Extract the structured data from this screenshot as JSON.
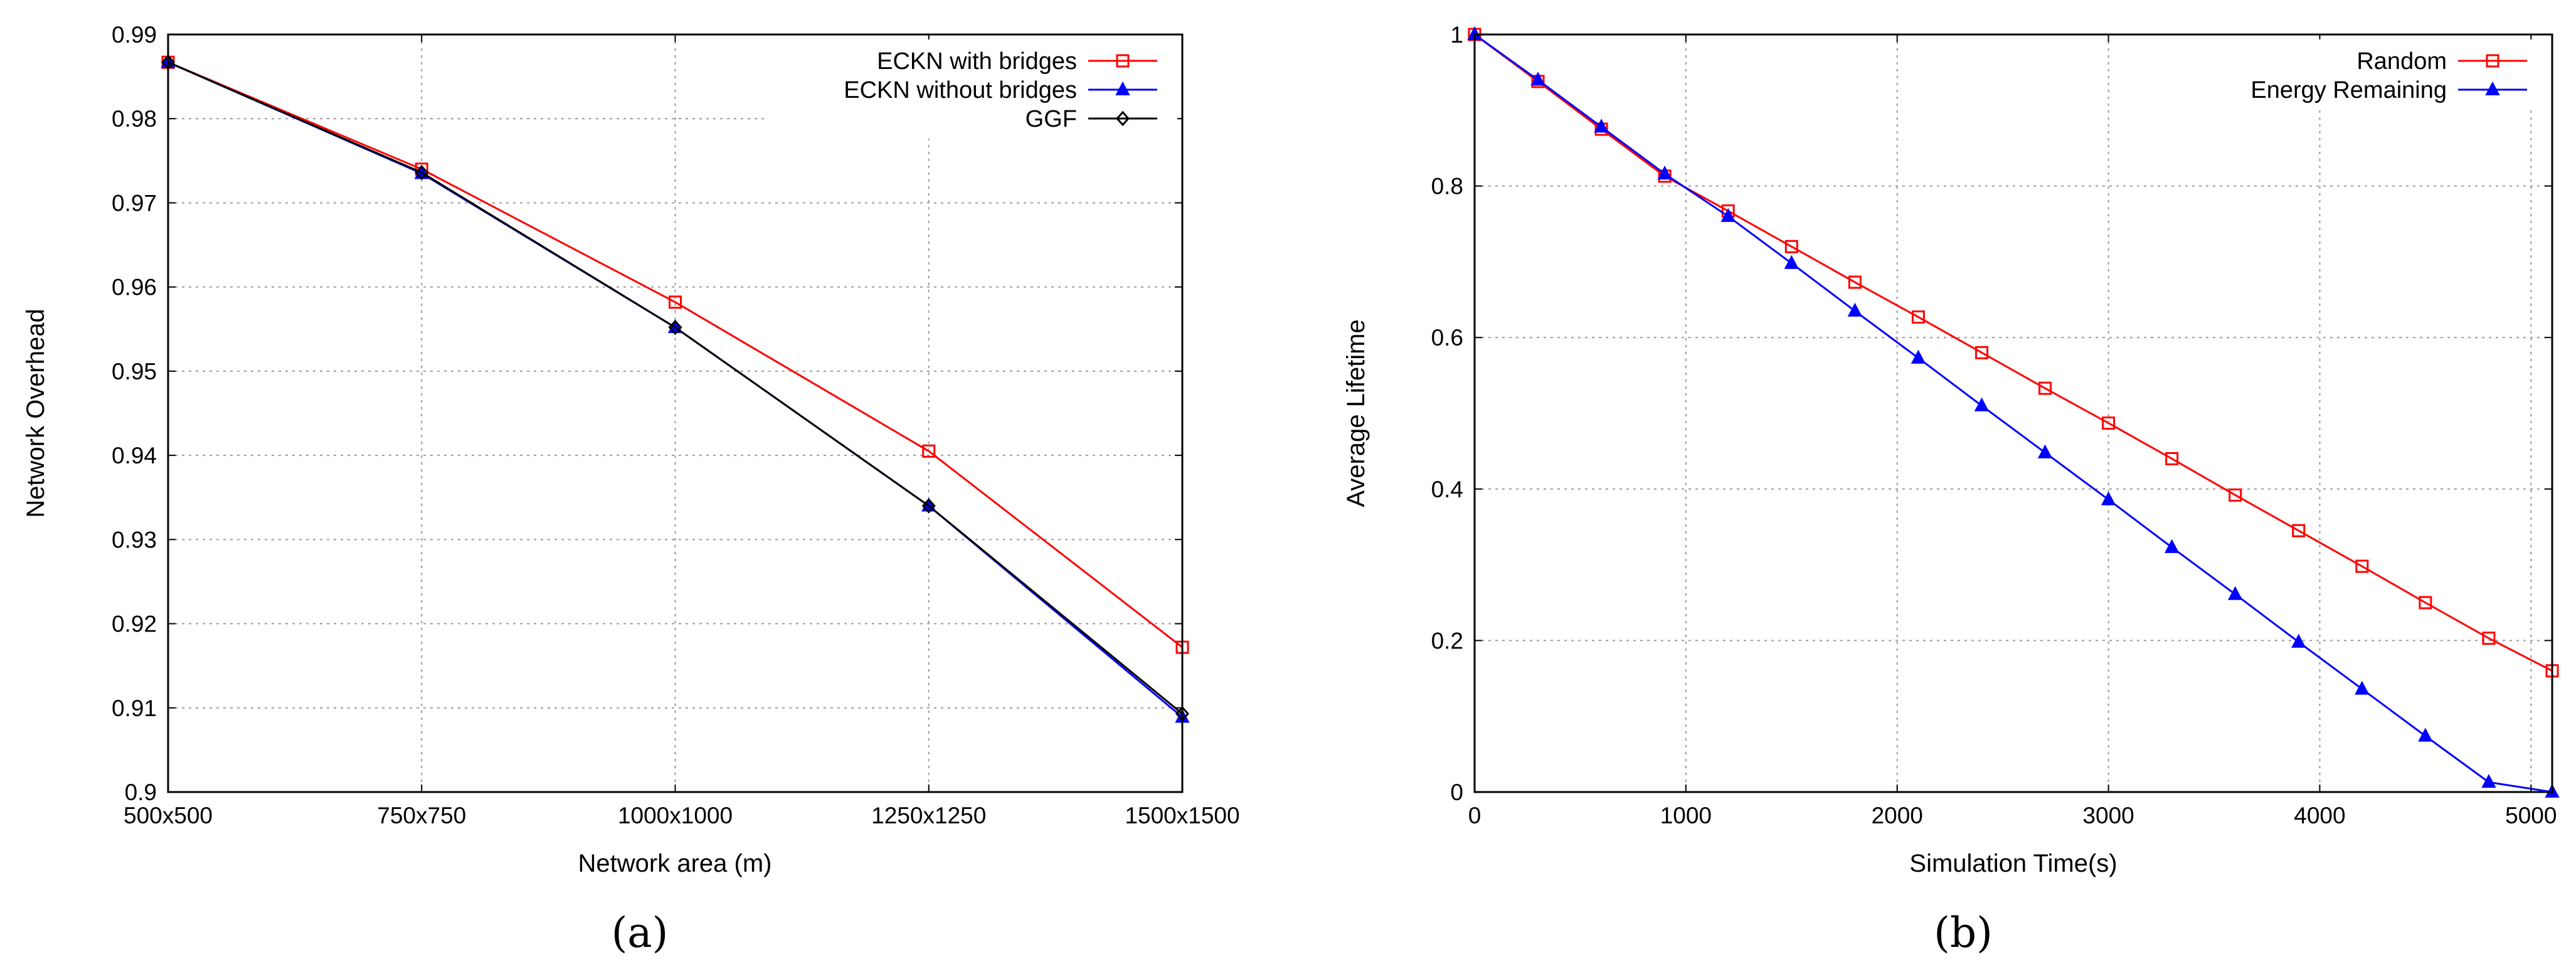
{
  "chart_data": [
    {
      "type": "line",
      "caption": "(a)",
      "xlabel": "Network area (m)",
      "ylabel": "Network Overhead",
      "categories": [
        "500x500",
        "750x750",
        "1000x1000",
        "1250x1250",
        "1500x1500"
      ],
      "ylim": [
        0.9,
        0.99
      ],
      "yticks": [
        "0.9",
        "0.91",
        "0.92",
        "0.93",
        "0.94",
        "0.95",
        "0.96",
        "0.97",
        "0.98",
        "0.99"
      ],
      "grid": true,
      "legend_position": "top-right",
      "series": [
        {
          "name": "ECKN with bridges",
          "color": "#ff0000",
          "marker": "square",
          "values": [
            0.9867,
            0.974,
            0.9582,
            0.9405,
            0.9172
          ]
        },
        {
          "name": "ECKN without bridges",
          "color": "#0000ff",
          "marker": "triangle",
          "values": [
            0.9867,
            0.9735,
            0.9552,
            0.934,
            0.9089
          ]
        },
        {
          "name": "GGF",
          "color": "#000000",
          "marker": "diamond",
          "values": [
            0.9867,
            0.9736,
            0.9552,
            0.934,
            0.9093
          ]
        }
      ]
    },
    {
      "type": "line",
      "caption": "(b)",
      "xlabel": "Simulation Time(s)",
      "ylabel": "Average Lifetime",
      "xlim": [
        0,
        5100
      ],
      "ylim": [
        0,
        1
      ],
      "xticks": [
        "0",
        "1000",
        "2000",
        "3000",
        "4000",
        "5000"
      ],
      "yticks": [
        "0",
        "0.2",
        "0.4",
        "0.6",
        "0.8",
        "1"
      ],
      "grid": true,
      "legend_position": "top-right",
      "x": [
        0,
        300,
        600,
        900,
        1200,
        1500,
        1800,
        2100,
        2400,
        2700,
        3000,
        3300,
        3600,
        3900,
        4200,
        4500,
        4800,
        5100
      ],
      "series": [
        {
          "name": "Random",
          "color": "#ff0000",
          "marker": "square",
          "values": [
            1.0,
            0.938,
            0.875,
            0.813,
            0.767,
            0.72,
            0.673,
            0.627,
            0.58,
            0.533,
            0.487,
            0.44,
            0.392,
            0.345,
            0.298,
            0.25,
            0.203,
            0.16
          ]
        },
        {
          "name": "Energy Remaining",
          "color": "#0000ff",
          "marker": "triangle",
          "values": [
            1.0,
            0.94,
            0.878,
            0.816,
            0.76,
            0.698,
            0.635,
            0.573,
            0.51,
            0.448,
            0.386,
            0.323,
            0.261,
            0.198,
            0.136,
            0.074,
            0.013,
            0.0
          ]
        }
      ]
    }
  ]
}
